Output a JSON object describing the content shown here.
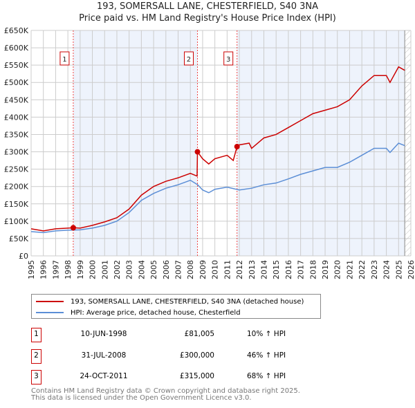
{
  "chart_data": {
    "type": "line",
    "title": "193, SOMERSALL LANE, CHESTERFIELD, S40 3NA",
    "subtitle": "Price paid vs. HM Land Registry's House Price Index (HPI)",
    "xlim": [
      1995,
      2026
    ],
    "ylim": [
      0,
      650000
    ],
    "x_ticks": [
      "1995",
      "1996",
      "1997",
      "1998",
      "1999",
      "2000",
      "2001",
      "2002",
      "2003",
      "2004",
      "2005",
      "2006",
      "2007",
      "2008",
      "2009",
      "2010",
      "2011",
      "2012",
      "2013",
      "2014",
      "2015",
      "2016",
      "2017",
      "2018",
      "2019",
      "2020",
      "2021",
      "2022",
      "2023",
      "2024",
      "2025",
      "2026"
    ],
    "y_ticks": [
      "£0",
      "£50K",
      "£100K",
      "£150K",
      "£200K",
      "£250K",
      "£300K",
      "£350K",
      "£400K",
      "£450K",
      "£500K",
      "£550K",
      "£600K",
      "£650K"
    ],
    "grid": true,
    "series": [
      {
        "name": "193, SOMERSALL LANE, CHESTERFIELD, S40 3NA (detached house)",
        "color": "#cc0000",
        "x": [
          1995,
          1996,
          1997,
          1998,
          1998.44,
          1999,
          2000,
          2001,
          2002,
          2003,
          2004,
          2005,
          2006,
          2007,
          2008,
          2008.55,
          2008.58,
          2009,
          2009.5,
          2010,
          2011,
          2011.5,
          2011.81,
          2012,
          2012.8,
          2013,
          2014,
          2015,
          2016,
          2017,
          2018,
          2019,
          2020,
          2021,
          2022,
          2023,
          2024,
          2024.3,
          2025,
          2025.5
        ],
        "values": [
          78000,
          72000,
          78000,
          80000,
          81005,
          80000,
          88000,
          98000,
          110000,
          135000,
          175000,
          200000,
          215000,
          225000,
          238000,
          230000,
          300000,
          280000,
          265000,
          280000,
          290000,
          275000,
          315000,
          320000,
          325000,
          310000,
          340000,
          350000,
          370000,
          390000,
          410000,
          420000,
          430000,
          450000,
          490000,
          520000,
          520000,
          500000,
          545000,
          535000
        ]
      },
      {
        "name": "HPI: Average price, detached house, Chesterfield",
        "color": "#5b8ed6",
        "x": [
          1995,
          1996,
          1997,
          1998,
          1999,
          2000,
          2001,
          2002,
          2003,
          2004,
          2005,
          2006,
          2007,
          2008,
          2008.6,
          2009,
          2009.5,
          2010,
          2011,
          2012,
          2013,
          2014,
          2015,
          2016,
          2017,
          2018,
          2019,
          2020,
          2021,
          2022,
          2023,
          2024,
          2024.3,
          2025,
          2025.5
        ],
        "values": [
          70000,
          67000,
          72000,
          74000,
          75000,
          80000,
          88000,
          100000,
          125000,
          160000,
          180000,
          195000,
          205000,
          218000,
          205000,
          190000,
          182000,
          192000,
          198000,
          190000,
          195000,
          205000,
          210000,
          222000,
          235000,
          245000,
          255000,
          255000,
          270000,
          290000,
          310000,
          310000,
          298000,
          325000,
          318000
        ]
      }
    ],
    "sales": [
      {
        "label": "1",
        "date": "10-JUN-1998",
        "price": "£81,005",
        "hpi": "10% ↑ HPI",
        "x": 1998.44,
        "value": 81005
      },
      {
        "label": "2",
        "date": "31-JUL-2008",
        "price": "£300,000",
        "hpi": "46% ↑ HPI",
        "x": 2008.58,
        "value": 300000
      },
      {
        "label": "3",
        "date": "24-OCT-2011",
        "price": "£315,000",
        "hpi": "68% ↑ HPI",
        "x": 2011.81,
        "value": 315000
      }
    ],
    "hatch_from": 2025.5
  },
  "footer": {
    "line1": "Contains HM Land Registry data © Crown copyright and database right 2025.",
    "line2": "This data is licensed under the Open Government Licence v3.0."
  }
}
